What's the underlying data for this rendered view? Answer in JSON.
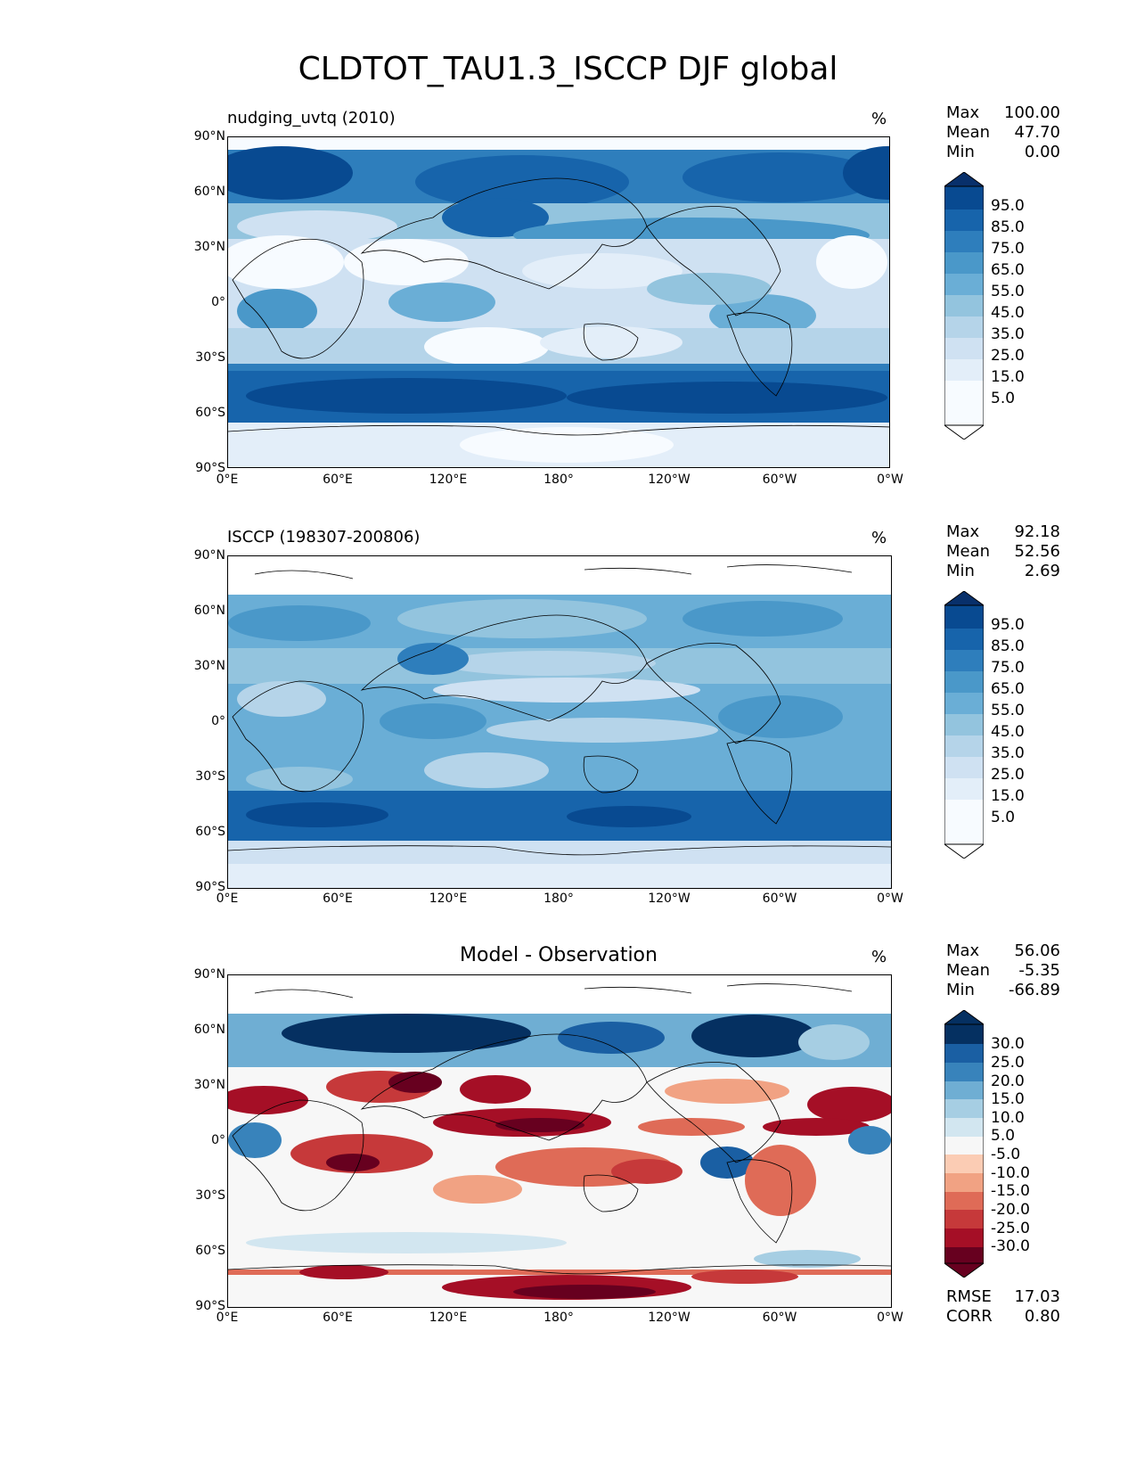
{
  "figure_title": "CLDTOT_TAU1.3_ISCCP DJF global",
  "y_ticks": [
    "90°N",
    "60°N",
    "30°N",
    "0°",
    "30°S",
    "60°S",
    "90°S"
  ],
  "x_ticks": [
    "0°E",
    "60°E",
    "120°E",
    "180°",
    "120°W",
    "60°W",
    "0°W"
  ],
  "colors": {
    "blues": [
      "#f7fbff",
      "#e3eef9",
      "#cfe1f2",
      "#b5d4e9",
      "#93c4de",
      "#6aaed6",
      "#4a98c9",
      "#2e7ebc",
      "#1764ab",
      "#084a91",
      "#08306b"
    ],
    "diverging": [
      "#67001f",
      "#a50f26",
      "#c6393a",
      "#df6b57",
      "#f1a283",
      "#fbccb4",
      "#f7f7f7",
      "#d2e6f0",
      "#a6cee3",
      "#6faed3",
      "#3883bb",
      "#1a5fa3",
      "#053061"
    ]
  },
  "panels": [
    {
      "id": "model",
      "title": "nudging_uvtq (2010)",
      "unit": "%",
      "stats": [
        {
          "label": "Max",
          "value": "100.00"
        },
        {
          "label": "Mean",
          "value": "47.70"
        },
        {
          "label": "Min",
          "value": "0.00"
        }
      ],
      "colorbar_labels": [
        "95.0",
        "85.0",
        "75.0",
        "65.0",
        "55.0",
        "45.0",
        "35.0",
        "25.0",
        "15.0",
        "5.0"
      ]
    },
    {
      "id": "obs",
      "title": "ISCCP (198307-200806)",
      "unit": "%",
      "stats": [
        {
          "label": "Max",
          "value": "92.18"
        },
        {
          "label": "Mean",
          "value": "52.56"
        },
        {
          "label": "Min",
          "value": "2.69"
        }
      ],
      "colorbar_labels": [
        "95.0",
        "85.0",
        "75.0",
        "65.0",
        "55.0",
        "45.0",
        "35.0",
        "25.0",
        "15.0",
        "5.0"
      ]
    },
    {
      "id": "diff",
      "title": "Model - Observation",
      "unit": "%",
      "stats": [
        {
          "label": "Max",
          "value": "56.06"
        },
        {
          "label": "Mean",
          "value": "-5.35"
        },
        {
          "label": "Min",
          "value": "-66.89"
        }
      ],
      "colorbar_labels": [
        "30.0",
        "25.0",
        "20.0",
        "15.0",
        "10.0",
        "5.0",
        "-5.0",
        "-10.0",
        "-15.0",
        "-20.0",
        "-25.0",
        "-30.0"
      ],
      "footer": [
        {
          "label": "RMSE",
          "value": "17.03"
        },
        {
          "label": "CORR",
          "value": "0.80"
        }
      ]
    }
  ]
}
